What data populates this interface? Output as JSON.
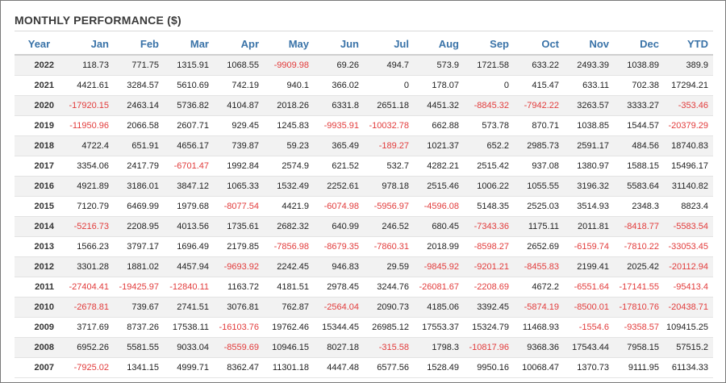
{
  "title": "MONTHLY PERFORMANCE ($)",
  "colors": {
    "header": "#3a73a8",
    "negative": "#e23b3b",
    "stripe": "#f2f2f2"
  },
  "columns": [
    "Year",
    "Jan",
    "Feb",
    "Mar",
    "Apr",
    "May",
    "Jun",
    "Jul",
    "Aug",
    "Sep",
    "Oct",
    "Nov",
    "Dec",
    "YTD"
  ],
  "rows": [
    [
      "2022",
      "118.73",
      "771.75",
      "1315.91",
      "1068.55",
      "-9909.98",
      "69.26",
      "494.7",
      "573.9",
      "1721.58",
      "633.22",
      "2493.39",
      "1038.89",
      "389.9"
    ],
    [
      "2021",
      "4421.61",
      "3284.57",
      "5610.69",
      "742.19",
      "940.1",
      "366.02",
      "0",
      "178.07",
      "0",
      "415.47",
      "633.11",
      "702.38",
      "17294.21"
    ],
    [
      "2020",
      "-17920.15",
      "2463.14",
      "5736.82",
      "4104.87",
      "2018.26",
      "6331.8",
      "2651.18",
      "4451.32",
      "-8845.32",
      "-7942.22",
      "3263.57",
      "3333.27",
      "-353.46"
    ],
    [
      "2019",
      "-11950.96",
      "2066.58",
      "2607.71",
      "929.45",
      "1245.83",
      "-9935.91",
      "-10032.78",
      "662.88",
      "573.78",
      "870.71",
      "1038.85",
      "1544.57",
      "-20379.29"
    ],
    [
      "2018",
      "4722.4",
      "651.91",
      "4656.17",
      "739.87",
      "59.23",
      "365.49",
      "-189.27",
      "1021.37",
      "652.2",
      "2985.73",
      "2591.17",
      "484.56",
      "18740.83"
    ],
    [
      "2017",
      "3354.06",
      "2417.79",
      "-6701.47",
      "1992.84",
      "2574.9",
      "621.52",
      "532.7",
      "4282.21",
      "2515.42",
      "937.08",
      "1380.97",
      "1588.15",
      "15496.17"
    ],
    [
      "2016",
      "4921.89",
      "3186.01",
      "3847.12",
      "1065.33",
      "1532.49",
      "2252.61",
      "978.18",
      "2515.46",
      "1006.22",
      "1055.55",
      "3196.32",
      "5583.64",
      "31140.82"
    ],
    [
      "2015",
      "7120.79",
      "6469.99",
      "1979.68",
      "-8077.54",
      "4421.9",
      "-6074.98",
      "-5956.97",
      "-4596.08",
      "5148.35",
      "2525.03",
      "3514.93",
      "2348.3",
      "8823.4"
    ],
    [
      "2014",
      "-5216.73",
      "2208.95",
      "4013.56",
      "1735.61",
      "2682.32",
      "640.99",
      "246.52",
      "680.45",
      "-7343.36",
      "1175.11",
      "2011.81",
      "-8418.77",
      "-5583.54"
    ],
    [
      "2013",
      "1566.23",
      "3797.17",
      "1696.49",
      "2179.85",
      "-7856.98",
      "-8679.35",
      "-7860.31",
      "2018.99",
      "-8598.27",
      "2652.69",
      "-6159.74",
      "-7810.22",
      "-33053.45"
    ],
    [
      "2012",
      "3301.28",
      "1881.02",
      "4457.94",
      "-9693.92",
      "2242.45",
      "946.83",
      "29.59",
      "-9845.92",
      "-9201.21",
      "-8455.83",
      "2199.41",
      "2025.42",
      "-20112.94"
    ],
    [
      "2011",
      "-27404.41",
      "-19425.97",
      "-12840.11",
      "1163.72",
      "4181.51",
      "2978.45",
      "3244.76",
      "-26081.67",
      "-2208.69",
      "4672.2",
      "-6551.64",
      "-17141.55",
      "-95413.4"
    ],
    [
      "2010",
      "-2678.81",
      "739.67",
      "2741.51",
      "3076.81",
      "762.87",
      "-2564.04",
      "2090.73",
      "4185.06",
      "3392.45",
      "-5874.19",
      "-8500.01",
      "-17810.76",
      "-20438.71"
    ],
    [
      "2009",
      "3717.69",
      "8737.26",
      "17538.11",
      "-16103.76",
      "19762.46",
      "15344.45",
      "26985.12",
      "17553.37",
      "15324.79",
      "11468.93",
      "-1554.6",
      "-9358.57",
      "109415.25"
    ],
    [
      "2008",
      "6952.26",
      "5581.55",
      "9033.04",
      "-8559.69",
      "10946.15",
      "8027.18",
      "-315.58",
      "1798.3",
      "-10817.96",
      "9368.36",
      "17543.44",
      "7958.15",
      "57515.2"
    ],
    [
      "2007",
      "-7925.02",
      "1341.15",
      "4999.71",
      "8362.47",
      "11301.18",
      "4447.48",
      "6577.56",
      "1528.49",
      "9950.16",
      "10068.47",
      "1370.73",
      "9111.95",
      "61134.33"
    ]
  ]
}
